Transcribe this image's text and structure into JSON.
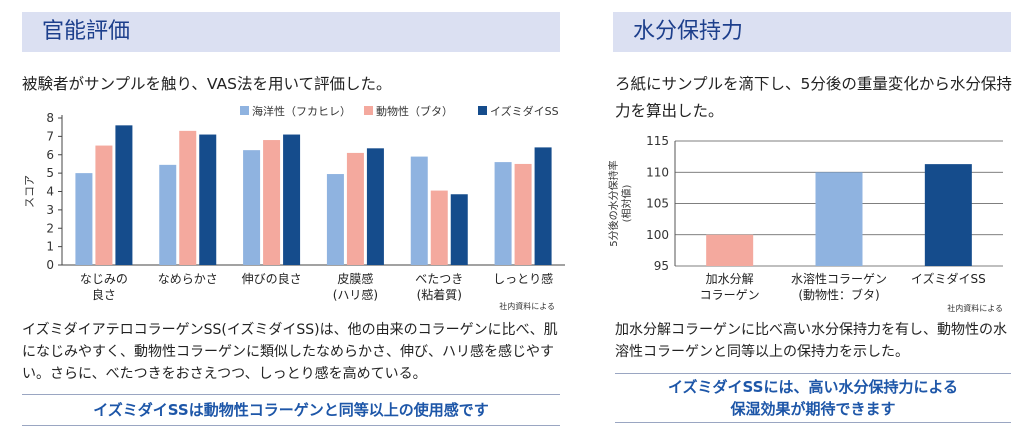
{
  "left": {
    "heading": "官能評価",
    "intro": "被験者がサンプルを触り、VAS法を用いて評価した。",
    "body": "イズミダイアテロコラーゲンSS(イズミダイSS)は、他の由来のコラーゲンに比べ、肌になじみやすく、動物性コラーゲンに類似したなめらかさ、伸び、ハリ感を感じやすい。さらに、べたつきをおさえつつ、しっとり感を高めている。",
    "conclusion": "イズミダイSSは動物性コラーゲンと同等以上の使用感です",
    "source_note": "社内資料による"
  },
  "right": {
    "heading": "水分保持力",
    "intro": "ろ紙にサンプルを滴下し、5分後の重量変化から水分保持力を算出した。",
    "body": "加水分解コラーゲンに比べ高い水分保持力を有し、動物性の水溶性コラーゲンと同等以上の保持力を示した。",
    "conclusion_line1": "イズミダイSSには、高い水分保持力による",
    "conclusion_line2": "保湿効果が期待できます",
    "source_note": "社内資料による"
  },
  "chart_data": [
    {
      "type": "bar",
      "ylabel": "スコア",
      "ylim": [
        0,
        8
      ],
      "yticks": [
        "0",
        "1",
        "2",
        "3",
        "4",
        "5",
        "6",
        "7",
        "8"
      ],
      "categories": [
        [
          "なじみの",
          "良さ"
        ],
        [
          "なめらかさ"
        ],
        [
          "伸びの良さ"
        ],
        [
          "皮膜感",
          "(ハリ感)"
        ],
        [
          "べたつき",
          "(粘着質)"
        ],
        [
          "しっとり感"
        ]
      ],
      "series": [
        {
          "name": "海洋性（フカヒレ）",
          "color": "#8fb3e0",
          "values": [
            5.0,
            5.45,
            6.25,
            4.95,
            5.9,
            5.6
          ]
        },
        {
          "name": "動物性（ブタ）",
          "color": "#f4a99e",
          "values": [
            6.5,
            7.3,
            6.8,
            6.1,
            4.05,
            5.5
          ]
        },
        {
          "name": "イズミダイSS",
          "color": "#154c8c",
          "values": [
            7.6,
            7.1,
            7.1,
            6.35,
            3.85,
            6.4
          ]
        }
      ],
      "legend": "top"
    },
    {
      "type": "bar",
      "ylabel_line1": "5分後の水分保持率",
      "ylabel_line2": "(相対値)",
      "ylim": [
        95,
        115
      ],
      "yticks": [
        "95",
        "100",
        "105",
        "110",
        "115"
      ],
      "categories": [
        [
          "加水分解",
          "コラーゲン"
        ],
        [
          "水溶性コラーゲン",
          "(動物性：ブタ)"
        ],
        [
          "イズミダイSS"
        ]
      ],
      "values": [
        100.0,
        110.0,
        111.3
      ],
      "colors": [
        "#f4a99e",
        "#8fb3e0",
        "#154c8c"
      ]
    }
  ]
}
